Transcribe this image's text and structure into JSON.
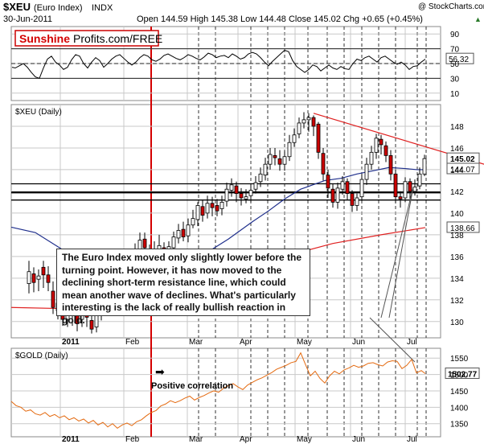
{
  "header": {
    "symbol": "$XEU",
    "name": "(Euro Index)",
    "exchange": "INDX",
    "date": "30-Jun-2011",
    "ohlc": "Open 144.59 High 145.38 Low 144.48 Close 145.02 Chg +0.65 (+0.45%)",
    "quote_arrow": "▲",
    "copyright": "@ StockCharts.com"
  },
  "logo": {
    "part1": "Sunshine",
    "part2": "Profits.com/FREE"
  },
  "colors": {
    "background": "#ffffff",
    "grid": "#c8c8c8",
    "rsi_line": "#000000",
    "up_candle": "#ffffff",
    "down_candle": "#cc0000",
    "ma_line": "#1f2f8c",
    "trend_line": "#e02020",
    "marker_line": "#d40000",
    "gold_line": "#e46a10"
  },
  "chart_data": [
    {
      "type": "line",
      "panel": "rsi",
      "label_box": "56.32",
      "ticks": [
        "90",
        "70",
        "50",
        "30",
        "10"
      ],
      "ylim": [
        0,
        100
      ],
      "reference_levels": [
        70,
        50,
        30
      ],
      "x": [
        1,
        5,
        10,
        15,
        20,
        25,
        30,
        35,
        40,
        45,
        50,
        55,
        60,
        65,
        70,
        75,
        80,
        85,
        90,
        95,
        100,
        105,
        110,
        115,
        120,
        125,
        130,
        135,
        140,
        145,
        150,
        155,
        160,
        165,
        170,
        175,
        180,
        185,
        190,
        195,
        200,
        205,
        210,
        215,
        220,
        225,
        230,
        235,
        240,
        245,
        250,
        255,
        260,
        265,
        270,
        275,
        280,
        285,
        290,
        295,
        300,
        305,
        310,
        315,
        320,
        325,
        330,
        335,
        340,
        345,
        350,
        355,
        360,
        365,
        370,
        375,
        380,
        385,
        390,
        395,
        400,
        405,
        410,
        415,
        420,
        425,
        430,
        435,
        440,
        445,
        450,
        455,
        460,
        465,
        470,
        475,
        480,
        485,
        490,
        495,
        500,
        505,
        510,
        515
      ],
      "values": [
        45,
        44,
        47,
        50,
        45,
        38,
        32,
        30,
        44,
        56,
        60,
        52,
        48,
        42,
        45,
        55,
        62,
        60,
        50,
        44,
        52,
        58,
        54,
        45,
        50,
        56,
        60,
        62,
        57,
        52,
        48,
        52,
        58,
        62,
        60,
        55,
        53,
        56,
        61,
        63,
        60,
        57,
        55,
        58,
        62,
        60,
        57,
        55,
        59,
        64,
        62,
        58,
        60,
        61,
        58,
        63,
        60,
        56,
        58,
        63,
        65,
        63,
        58,
        52,
        47,
        53,
        58,
        63,
        68,
        66,
        54,
        46,
        42,
        38,
        42,
        48,
        46,
        40,
        44,
        48,
        44,
        42,
        46,
        43,
        42,
        50,
        56,
        54,
        58,
        60,
        56,
        52,
        58,
        60,
        56,
        52,
        49,
        52,
        48,
        42,
        46,
        47,
        52,
        56
      ]
    },
    {
      "type": "candlestick",
      "panel": "price",
      "title": "$XEU (Daily)",
      "price_tags": [
        "145.02",
        "144.07",
        "138.66"
      ],
      "ticks": [
        "148",
        "146",
        "144",
        "142",
        "140",
        "138",
        "136",
        "134",
        "132",
        "130"
      ],
      "ylim": [
        128.5,
        150
      ],
      "x_labels": [
        "2011",
        "Feb",
        "Mar",
        "Apr",
        "May",
        "Jun",
        "Jul"
      ],
      "horizontal_lines": [
        142.7,
        141.9,
        141.2
      ],
      "ma_line": [
        [
          0,
          138.7
        ],
        [
          30,
          138.2
        ],
        [
          60,
          136.8
        ],
        [
          90,
          135.4
        ],
        [
          120,
          134.6
        ],
        [
          150,
          134.2
        ],
        [
          180,
          134.5
        ],
        [
          210,
          135.2
        ],
        [
          240,
          136.2
        ],
        [
          270,
          137.6
        ],
        [
          300,
          139.2
        ],
        [
          320,
          140.2
        ],
        [
          340,
          141.3
        ],
        [
          360,
          142.2
        ],
        [
          375,
          142.6
        ],
        [
          390,
          143.0
        ],
        [
          410,
          143.2
        ],
        [
          430,
          143.6
        ],
        [
          450,
          143.9
        ],
        [
          470,
          144.2
        ],
        [
          490,
          144.1
        ],
        [
          505,
          144.0
        ],
        [
          515,
          144.0
        ]
      ],
      "ma2_line": [
        [
          0,
          131.3
        ],
        [
          60,
          131.2
        ],
        [
          120,
          131.0
        ],
        [
          200,
          132.0
        ],
        [
          280,
          134.2
        ],
        [
          340,
          136.0
        ],
        [
          400,
          137.2
        ],
        [
          460,
          138.0
        ],
        [
          515,
          138.66
        ]
      ],
      "resistance_line": [
        [
          376,
          149.2
        ],
        [
          602,
          144.5
        ]
      ],
      "candles": [
        [
          22,
          133.5,
          134.6,
          135.6,
          132.6
        ],
        [
          28,
          134.4,
          133.6,
          135.0,
          132.7
        ],
        [
          34,
          133.9,
          134.2,
          134.8,
          132.8
        ],
        [
          40,
          135.0,
          134.3,
          135.6,
          133.1
        ],
        [
          46,
          134.3,
          133.6,
          135.1,
          132.8
        ],
        [
          52,
          132.8,
          131.3,
          133.7,
          130.7
        ],
        [
          58,
          131.7,
          131.0,
          132.3,
          130.2
        ],
        [
          64,
          131.3,
          130.2,
          132.2,
          129.6
        ],
        [
          70,
          130.2,
          130.9,
          131.7,
          129.5
        ],
        [
          76,
          131.1,
          130.6,
          131.6,
          129.6
        ],
        [
          82,
          130.8,
          129.8,
          131.1,
          129.1
        ],
        [
          88,
          130.2,
          130.6,
          131.1,
          129.5
        ],
        [
          94,
          130.6,
          130.4,
          131.1,
          129.5
        ],
        [
          100,
          130.1,
          129.3,
          131.0,
          128.9
        ],
        [
          106,
          129.5,
          130.7,
          131.2,
          129.0
        ],
        [
          112,
          130.6,
          131.4,
          132.2,
          130.1
        ],
        [
          118,
          131.3,
          132.6,
          133.3,
          130.7
        ],
        [
          124,
          132.7,
          133.6,
          134.3,
          132.3
        ],
        [
          130,
          133.5,
          134.5,
          135.2,
          133.1
        ],
        [
          136,
          134.4,
          135.1,
          136.0,
          133.9
        ],
        [
          142,
          135.2,
          134.4,
          135.8,
          133.6
        ],
        [
          148,
          134.5,
          135.7,
          136.5,
          133.9
        ],
        [
          154,
          135.8,
          136.6,
          137.2,
          135.1
        ],
        [
          160,
          136.4,
          137.5,
          138.2,
          135.8
        ],
        [
          166,
          137.6,
          136.8,
          138.2,
          136.0
        ],
        [
          172,
          136.5,
          136.1,
          137.1,
          135.6
        ],
        [
          178,
          136.2,
          136.7,
          137.4,
          135.7
        ],
        [
          184,
          136.6,
          137.0,
          138.0,
          136.2
        ],
        [
          190,
          136.8,
          136.0,
          137.3,
          135.4
        ],
        [
          196,
          136.1,
          136.9,
          137.4,
          135.5
        ],
        [
          202,
          136.8,
          137.8,
          138.3,
          136.3
        ],
        [
          208,
          137.7,
          138.4,
          139.0,
          137.2
        ],
        [
          214,
          138.5,
          137.8,
          139.2,
          137.4
        ],
        [
          220,
          137.9,
          138.9,
          139.5,
          137.3
        ],
        [
          226,
          138.9,
          139.5,
          140.3,
          138.6
        ],
        [
          232,
          139.4,
          140.7,
          141.0,
          138.8
        ],
        [
          238,
          140.6,
          139.8,
          141.2,
          139.2
        ],
        [
          244,
          140.0,
          140.9,
          141.6,
          139.5
        ],
        [
          250,
          140.9,
          140.5,
          141.5,
          139.7
        ],
        [
          256,
          140.7,
          140.2,
          141.3,
          139.7
        ],
        [
          262,
          140.4,
          141.0,
          141.6,
          139.8
        ],
        [
          268,
          141.1,
          142.2,
          142.8,
          140.6
        ],
        [
          274,
          142.1,
          142.6,
          143.2,
          141.5
        ],
        [
          280,
          142.5,
          141.8,
          142.9,
          141.0
        ],
        [
          286,
          141.8,
          141.4,
          142.3,
          140.7
        ],
        [
          292,
          141.3,
          141.5,
          142.2,
          140.9
        ],
        [
          298,
          141.6,
          142.1,
          142.7,
          141.0
        ],
        [
          304,
          142.2,
          142.8,
          143.4,
          141.8
        ],
        [
          310,
          142.9,
          143.6,
          144.2,
          142.4
        ],
        [
          316,
          143.5,
          144.5,
          145.1,
          143.0
        ],
        [
          322,
          144.5,
          145.4,
          146.0,
          144.0
        ],
        [
          328,
          145.3,
          145.1,
          146.0,
          144.4
        ],
        [
          334,
          145.0,
          144.5,
          145.8,
          143.9
        ],
        [
          340,
          144.5,
          145.2,
          145.7,
          143.9
        ],
        [
          346,
          145.2,
          146.5,
          147.2,
          144.8
        ],
        [
          352,
          146.5,
          147.2,
          147.8,
          146.1
        ],
        [
          358,
          147.3,
          148.3,
          148.8,
          146.9
        ],
        [
          364,
          148.3,
          148.6,
          149.3,
          147.8
        ],
        [
          370,
          148.6,
          148.8,
          149.2,
          147.5
        ],
        [
          376,
          148.8,
          148.0,
          149.0,
          147.1
        ],
        [
          382,
          148.2,
          145.6,
          148.4,
          145.0
        ],
        [
          388,
          145.5,
          143.6,
          146.0,
          143.0
        ],
        [
          394,
          143.5,
          142.3,
          144.0,
          141.4
        ],
        [
          400,
          142.2,
          141.0,
          142.7,
          140.5
        ],
        [
          406,
          141.0,
          142.3,
          142.8,
          140.4
        ],
        [
          412,
          142.2,
          142.9,
          143.4,
          141.7
        ],
        [
          418,
          142.9,
          141.8,
          143.2,
          141.2
        ],
        [
          424,
          141.8,
          140.7,
          142.1,
          140.1
        ],
        [
          430,
          140.7,
          141.4,
          141.8,
          140.2
        ],
        [
          436,
          141.5,
          143.1,
          143.6,
          141.1
        ],
        [
          442,
          143.1,
          144.5,
          145.1,
          142.6
        ],
        [
          448,
          144.5,
          145.6,
          146.2,
          144.0
        ],
        [
          454,
          145.6,
          146.9,
          147.3,
          145.0
        ],
        [
          460,
          146.8,
          146.3,
          147.2,
          145.4
        ],
        [
          466,
          146.2,
          145.3,
          146.6,
          144.7
        ],
        [
          472,
          145.3,
          143.6,
          145.8,
          143.0
        ],
        [
          478,
          143.6,
          141.5,
          144.0,
          140.9
        ],
        [
          484,
          141.5,
          141.3,
          142.0,
          140.5
        ],
        [
          490,
          141.4,
          142.9,
          143.3,
          141.0
        ],
        [
          496,
          142.9,
          142.0,
          143.2,
          141.3
        ],
        [
          502,
          142.0,
          142.4,
          143.1,
          141.6
        ],
        [
          508,
          142.5,
          143.6,
          144.2,
          142.2
        ],
        [
          514,
          143.6,
          145.02,
          145.38,
          143.4
        ]
      ]
    },
    {
      "type": "line",
      "panel": "gold",
      "title": "$GOLD (Daily)",
      "price_tag": "1502.77",
      "annotation": "Positive correlation",
      "ticks": [
        "1550",
        "1500",
        "1450",
        "1400",
        "1350"
      ],
      "ylim": [
        1310,
        1580
      ],
      "x_labels": [
        "2011",
        "Feb",
        "Mar",
        "Apr",
        "May",
        "Jun",
        "Jul"
      ],
      "x": [
        0,
        6,
        12,
        18,
        24,
        30,
        36,
        42,
        48,
        54,
        60,
        66,
        72,
        78,
        84,
        90,
        96,
        102,
        108,
        114,
        120,
        126,
        132,
        138,
        144,
        150,
        156,
        162,
        168,
        174,
        180,
        186,
        192,
        198,
        204,
        210,
        216,
        222,
        228,
        234,
        240,
        246,
        252,
        258,
        264,
        270,
        276,
        282,
        288,
        294,
        300,
        306,
        312,
        318,
        324,
        330,
        336,
        342,
        348,
        354,
        360,
        366,
        372,
        378,
        384,
        390,
        396,
        402,
        408,
        414,
        420,
        426,
        432,
        438,
        444,
        450,
        456,
        462,
        468,
        474,
        480,
        486,
        492,
        498,
        504,
        510,
        515
      ],
      "values": [
        1418,
        1405,
        1400,
        1388,
        1392,
        1380,
        1376,
        1384,
        1372,
        1378,
        1368,
        1374,
        1362,
        1368,
        1358,
        1364,
        1352,
        1360,
        1346,
        1354,
        1340,
        1350,
        1336,
        1346,
        1352,
        1344,
        1356,
        1362,
        1374,
        1384,
        1390,
        1404,
        1410,
        1420,
        1414,
        1420,
        1428,
        1434,
        1422,
        1430,
        1436,
        1444,
        1450,
        1446,
        1458,
        1466,
        1472,
        1462,
        1454,
        1468,
        1476,
        1484,
        1490,
        1498,
        1506,
        1516,
        1522,
        1528,
        1536,
        1540,
        1566,
        1530,
        1496,
        1510,
        1488,
        1474,
        1496,
        1510,
        1502,
        1514,
        1520,
        1528,
        1522,
        1526,
        1534,
        1536,
        1530,
        1526,
        1538,
        1542,
        1540,
        1518,
        1528,
        1546,
        1505,
        1512,
        1502.77
      ]
    }
  ],
  "callout": {
    "text": "The Euro Index moved only slightly lower before the turning point. However, it has now moved to the declining short-term resistance line, which could mean another wave of declines. What's particularly interesting is the lack of really bullish reaction in gold."
  }
}
